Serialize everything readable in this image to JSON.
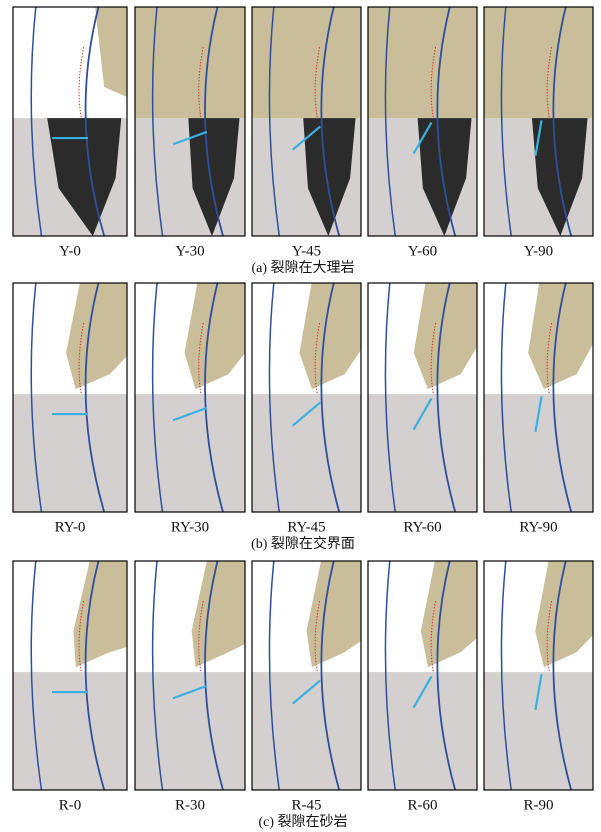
{
  "rows": [
    {
      "panels": [
        "Y-0",
        "Y-30",
        "Y-45",
        "Y-60",
        "Y-90"
      ],
      "caption": "(a) 裂隙在大理岩"
    },
    {
      "panels": [
        "RY-0",
        "RY-30",
        "RY-45",
        "RY-60",
        "RY-90"
      ],
      "caption": "(b) 裂隙在交界面"
    },
    {
      "panels": [
        "R-0",
        "R-30",
        "R-45",
        "R-60",
        "R-90"
      ],
      "caption": "(c) 裂隙在砂岩"
    }
  ]
}
